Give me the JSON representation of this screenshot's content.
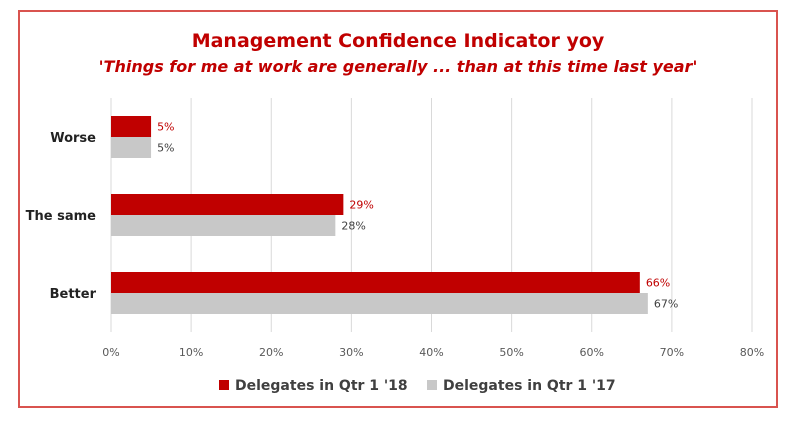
{
  "chart_data": {
    "type": "bar",
    "orientation": "horizontal",
    "title": "Management Confidence Indicator yoy",
    "subtitle": "'Things for me at work are generally ... than at this time last year'",
    "categories": [
      "Worse",
      "The same",
      "Better"
    ],
    "series": [
      {
        "name": "Delegates in Qtr 1 '18",
        "color": "#c00000",
        "values": [
          5,
          29,
          66
        ],
        "labels": [
          "5%",
          "29%",
          "66%"
        ]
      },
      {
        "name": "Delegates in Qtr 1 '17",
        "color": "#c8c8c8",
        "values": [
          5,
          28,
          67
        ],
        "labels": [
          "5%",
          "28%",
          "67%"
        ]
      }
    ],
    "xlim": [
      0,
      80
    ],
    "xticks": [
      "0%",
      "10%",
      "20%",
      "30%",
      "40%",
      "50%",
      "60%",
      "70%",
      "80%"
    ],
    "grid": true,
    "legend": "bottom",
    "label_colors": [
      "#c00000",
      "#404040"
    ]
  }
}
